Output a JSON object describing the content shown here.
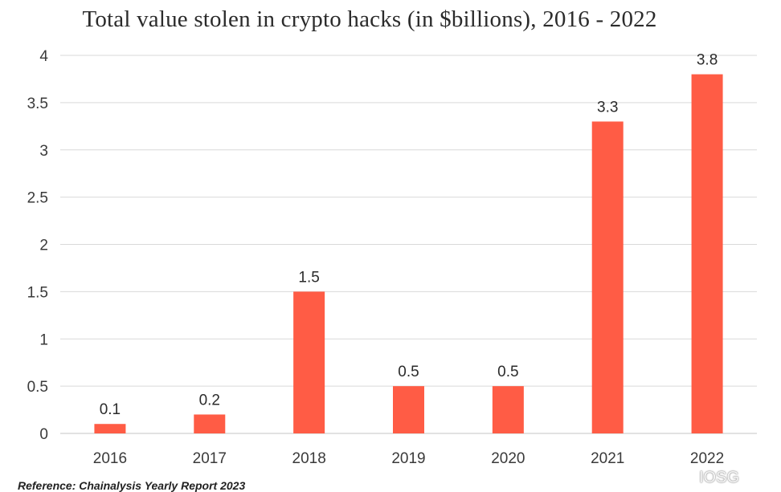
{
  "chart_data": {
    "type": "bar",
    "title": "Total value stolen in crypto hacks (in $billions), 2016 - 2022",
    "xlabel": "",
    "ylabel": "",
    "categories": [
      "2016",
      "2017",
      "2018",
      "2019",
      "2020",
      "2021",
      "2022"
    ],
    "values": [
      0.1,
      0.2,
      1.5,
      0.5,
      0.5,
      3.3,
      3.8
    ],
    "data_labels": [
      "0.1",
      "0.2",
      "1.5",
      "0.5",
      "0.5",
      "3.3",
      "3.8"
    ],
    "ylim": [
      0,
      4
    ],
    "y_ticks": [
      "0",
      "0.5",
      "1",
      "1.5",
      "2",
      "2.5",
      "3",
      "3.5",
      "4"
    ],
    "grid": true,
    "bar_color": "#ff5c45",
    "grid_color": "#d9d9d9"
  },
  "footer": {
    "reference": "Reference: Chainalysis Yearly Report 2023",
    "watermark": "IOSG"
  }
}
